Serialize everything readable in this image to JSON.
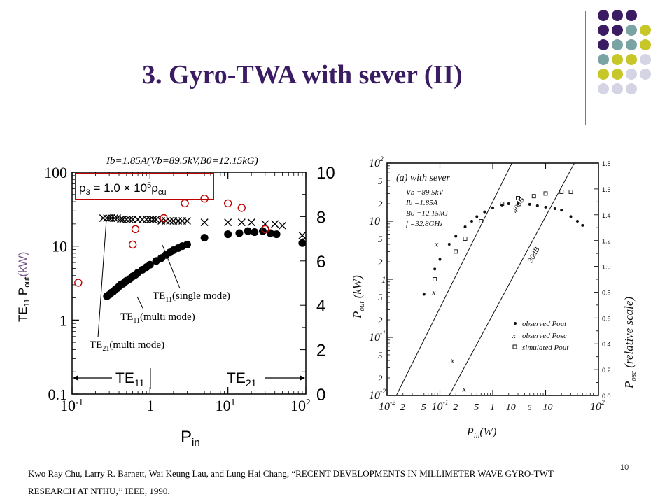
{
  "slide": {
    "title": "3. Gyro-TWA with sever (II)",
    "page_number": "10",
    "citation": "Kwo Ray Chu, Larry R. Barnett, Wai Keung Lau, and Lung Hai Chang, “RECENT DEVELOPMENTS IN MILLIMETER WAVE GYRO-TWT RESEARCH AT NTHU,’’ IEEE, 1990.",
    "colors": {
      "title": "#3b1c63",
      "purple": "#3b1c63",
      "teal": "#7aa3a3",
      "olive": "#c7c72a",
      "lavender": "#d4d4e4",
      "red": "#c00000"
    }
  },
  "chart_data": [
    {
      "type": "scatter",
      "title": "Ib=1.85A(Vb=89.5kV,B0=12.15kG)",
      "xlabel": "Pin",
      "ylabel": "TE11 Pout(kW)",
      "x_scale": "log",
      "y_scale": "log",
      "xlim": [
        0.1,
        100
      ],
      "ylim": [
        0.1,
        100
      ],
      "x_ticks": [
        "10-1",
        "1",
        "101",
        "102"
      ],
      "y_ticks": [
        "0.1",
        "1",
        "10",
        "100"
      ],
      "y2_ticks": [
        "0",
        "2",
        "4",
        "6",
        "8",
        "10"
      ],
      "y2lim": [
        0,
        10
      ],
      "annotation_box": "ρ3 = 1.0 × 105ρcu",
      "region_labels": [
        "TE11",
        "TE21"
      ],
      "series": [
        {
          "name": "TE11(multi mode)",
          "marker": "filled-circle",
          "axis": "left",
          "points": [
            [
              0.28,
              2.1
            ],
            [
              0.3,
              2.2
            ],
            [
              0.32,
              2.35
            ],
            [
              0.34,
              2.45
            ],
            [
              0.36,
              2.6
            ],
            [
              0.38,
              2.7
            ],
            [
              0.4,
              2.85
            ],
            [
              0.42,
              3.0
            ],
            [
              0.45,
              3.1
            ],
            [
              0.48,
              3.3
            ],
            [
              0.5,
              3.4
            ],
            [
              0.55,
              3.6
            ],
            [
              0.6,
              3.9
            ],
            [
              0.65,
              4.1
            ],
            [
              0.7,
              4.4
            ],
            [
              0.8,
              4.8
            ],
            [
              0.9,
              5.2
            ],
            [
              1.0,
              5.6
            ],
            [
              1.2,
              6.3
            ],
            [
              1.4,
              6.9
            ],
            [
              1.6,
              7.6
            ],
            [
              1.8,
              8.2
            ],
            [
              2.0,
              8.8
            ],
            [
              2.3,
              9.4
            ],
            [
              2.6,
              10.0
            ],
            [
              3.0,
              10.5
            ]
          ]
        },
        {
          "name": "TE11(single mode)",
          "marker": "filled-circle",
          "axis": "left",
          "points": [
            [
              5.0,
              13.0
            ],
            [
              10.0,
              14.5
            ],
            [
              14.0,
              15.0
            ],
            [
              18.0,
              16.0
            ],
            [
              22.0,
              15.5
            ],
            [
              28.0,
              16.0
            ],
            [
              35.0,
              15.0
            ],
            [
              42.0,
              14.5
            ],
            [
              90.0,
              11.0
            ]
          ]
        },
        {
          "name": "TE21(multi mode)",
          "marker": "x",
          "axis": "left",
          "points": [
            [
              0.25,
              24
            ],
            [
              0.28,
              24
            ],
            [
              0.3,
              24
            ],
            [
              0.32,
              24
            ],
            [
              0.35,
              24
            ],
            [
              0.38,
              24
            ],
            [
              0.42,
              23
            ],
            [
              0.45,
              23
            ],
            [
              0.5,
              23
            ],
            [
              0.55,
              23
            ],
            [
              0.6,
              23
            ],
            [
              0.7,
              23
            ],
            [
              0.8,
              23
            ],
            [
              0.9,
              23
            ],
            [
              1.0,
              23
            ],
            [
              1.1,
              23
            ],
            [
              1.2,
              23
            ],
            [
              1.4,
              22
            ],
            [
              1.6,
              22
            ],
            [
              1.8,
              22
            ],
            [
              2.0,
              22
            ],
            [
              2.3,
              22
            ],
            [
              2.6,
              22
            ],
            [
              3.0,
              22
            ],
            [
              5.0,
              21
            ],
            [
              10.0,
              21
            ],
            [
              15.0,
              21
            ],
            [
              20.0,
              21
            ],
            [
              30.0,
              20
            ],
            [
              40.0,
              20
            ],
            [
              50.0,
              19
            ],
            [
              90.0,
              14
            ]
          ]
        },
        {
          "name": "",
          "marker": "open-circle-red",
          "axis": "left",
          "points": [
            [
              0.12,
              3.2
            ],
            [
              0.6,
              10.5
            ],
            [
              0.65,
              17.0
            ],
            [
              1.5,
              24.0
            ],
            [
              2.8,
              38.0
            ],
            [
              5.0,
              44.0
            ],
            [
              10.0,
              38.0
            ],
            [
              15.0,
              33.0
            ],
            [
              30.0,
              17.0
            ]
          ]
        }
      ],
      "callouts": [
        "TE11(single mode)",
        "TE11(multi mode)",
        "TE21(multi mode)"
      ]
    },
    {
      "type": "scatter",
      "title": "(a) with sever",
      "xlabel": "Pin(W)",
      "ylabel": "Pout (kW)",
      "y2label": "Posc (relative scale)",
      "x_scale": "log",
      "y_scale": "log",
      "xlim": [
        0.01,
        100
      ],
      "ylim": [
        0.01,
        100
      ],
      "y2lim": [
        0,
        1.8
      ],
      "x_tick_labels": [
        "10-2",
        "2",
        "5",
        "10-1",
        "2",
        "5",
        "1",
        "10",
        "10",
        "102"
      ],
      "y_tick_labels": [
        "102",
        "5",
        "2",
        "10",
        "5",
        "2",
        "1",
        "5",
        "2",
        "10-1",
        "5",
        "2",
        "10-2"
      ],
      "y2_tick_labels": [
        "1.8",
        "1.6",
        "1.4",
        "1.2",
        "1.0",
        "0.8",
        "0.6",
        "0.4",
        "0.2",
        "0.0"
      ],
      "params": [
        "Vb =89.5kV",
        "Ib =1.85A",
        "B0 =12.15kG",
        "f =32.8GHz"
      ],
      "legend": [
        "observed Pout",
        "observed Posc",
        "simulated Pout"
      ],
      "gain_lines": [
        "40dB",
        "30dB"
      ],
      "series": [
        {
          "name": "observed Pout",
          "marker": "dot",
          "points": [
            [
              0.05,
              0.55
            ],
            [
              0.08,
              1.5
            ],
            [
              0.1,
              2.2
            ],
            [
              0.15,
              4.0
            ],
            [
              0.2,
              5.5
            ],
            [
              0.3,
              8.0
            ],
            [
              0.4,
              10.0
            ],
            [
              0.5,
              12.0
            ],
            [
              0.7,
              14.5
            ],
            [
              1.0,
              17.0
            ],
            [
              1.5,
              19.0
            ],
            [
              2.0,
              20.0
            ],
            [
              3.0,
              20.0
            ],
            [
              5.0,
              19.5
            ],
            [
              7.0,
              18.5
            ],
            [
              10.0,
              17.5
            ],
            [
              15.0,
              16.5
            ],
            [
              20.0,
              15.5
            ],
            [
              30.0,
              12.0
            ],
            [
              40.0,
              10.0
            ],
            [
              50.0,
              8.5
            ]
          ]
        },
        {
          "name": "observed Posc",
          "marker": "x",
          "points": [
            [
              0.09,
              4.0
            ],
            [
              0.08,
              0.6
            ],
            [
              0.18,
              0.04
            ],
            [
              0.3,
              0.013
            ]
          ]
        },
        {
          "name": "simulated Pout",
          "marker": "square",
          "points": [
            [
              0.08,
              1.0
            ],
            [
              0.2,
              3.0
            ],
            [
              0.3,
              5.0
            ],
            [
              0.6,
              10.0
            ],
            [
              1.5,
              20.0
            ],
            [
              3.0,
              25.0
            ],
            [
              6.0,
              27.0
            ],
            [
              10.0,
              30.0
            ],
            [
              20.0,
              32.0
            ],
            [
              30.0,
              32.0
            ]
          ]
        }
      ]
    }
  ]
}
